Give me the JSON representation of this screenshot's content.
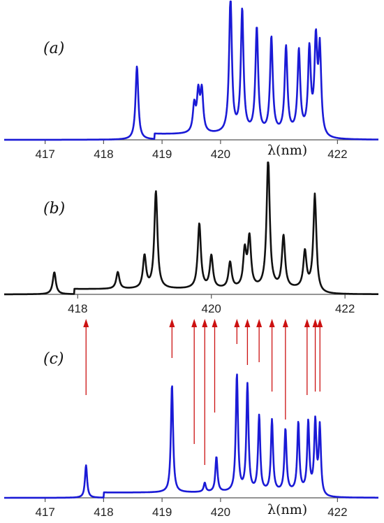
{
  "chart_data": [
    {
      "type": "line",
      "panel_label": "(a)",
      "xlabel": "λ(nm)",
      "xlim": [
        416.3,
        422.7
      ],
      "ylim": [
        0,
        1
      ],
      "x_ticks": [
        "417",
        "418",
        "419",
        "420",
        "422"
      ],
      "color": "#1a1ad6",
      "grid": false,
      "peaks": [
        {
          "x": 418.57,
          "y": 0.54
        },
        {
          "x": 419.55,
          "y": 0.2
        },
        {
          "x": 419.62,
          "y": 0.28
        },
        {
          "x": 419.68,
          "y": 0.3
        },
        {
          "x": 420.17,
          "y": 1.0
        },
        {
          "x": 420.37,
          "y": 0.9
        },
        {
          "x": 420.62,
          "y": 0.77
        },
        {
          "x": 420.87,
          "y": 0.7
        },
        {
          "x": 421.12,
          "y": 0.63
        },
        {
          "x": 421.34,
          "y": 0.6
        },
        {
          "x": 421.52,
          "y": 0.6
        },
        {
          "x": 421.63,
          "y": 0.65
        },
        {
          "x": 421.7,
          "y": 0.6
        }
      ]
    },
    {
      "type": "line",
      "panel_label": "(b)",
      "xlim": [
        416.9,
        422.5
      ],
      "ylim": [
        0,
        1
      ],
      "x_ticks": [
        "418",
        "420",
        "422"
      ],
      "color": "#111111",
      "grid": false,
      "peaks": [
        {
          "x": 417.65,
          "y": 0.17
        },
        {
          "x": 418.6,
          "y": 0.13
        },
        {
          "x": 419.0,
          "y": 0.25
        },
        {
          "x": 419.17,
          "y": 0.75
        },
        {
          "x": 419.82,
          "y": 0.5
        },
        {
          "x": 420.0,
          "y": 0.25
        },
        {
          "x": 420.28,
          "y": 0.2
        },
        {
          "x": 420.5,
          "y": 0.28
        },
        {
          "x": 420.57,
          "y": 0.38
        },
        {
          "x": 420.85,
          "y": 1.0
        },
        {
          "x": 421.08,
          "y": 0.4
        },
        {
          "x": 421.4,
          "y": 0.28
        },
        {
          "x": 421.55,
          "y": 0.73
        }
      ]
    },
    {
      "type": "line",
      "panel_label": "(c)",
      "xlabel": "λ(nm)",
      "xlim": [
        416.3,
        422.7
      ],
      "ylim": [
        0,
        1
      ],
      "x_ticks": [
        "417",
        "418",
        "419",
        "420",
        "422"
      ],
      "color": "#1a1ad6",
      "grid": false,
      "peaks": [
        {
          "x": 417.7,
          "y": 0.25
        },
        {
          "x": 419.17,
          "y": 0.83
        },
        {
          "x": 419.73,
          "y": 0.07
        },
        {
          "x": 419.93,
          "y": 0.27
        },
        {
          "x": 420.28,
          "y": 0.9
        },
        {
          "x": 420.46,
          "y": 0.82
        },
        {
          "x": 420.66,
          "y": 0.58
        },
        {
          "x": 420.88,
          "y": 0.55
        },
        {
          "x": 421.11,
          "y": 0.48
        },
        {
          "x": 421.33,
          "y": 0.53
        },
        {
          "x": 421.5,
          "y": 0.53
        },
        {
          "x": 421.62,
          "y": 0.53
        },
        {
          "x": 421.7,
          "y": 0.5
        }
      ],
      "arrow_color": "#cc1111",
      "arrows_x": [
        417.7,
        419.17,
        419.55,
        419.73,
        419.9,
        420.28,
        420.46,
        420.66,
        420.88,
        421.11,
        421.48,
        421.62,
        421.7
      ]
    }
  ]
}
